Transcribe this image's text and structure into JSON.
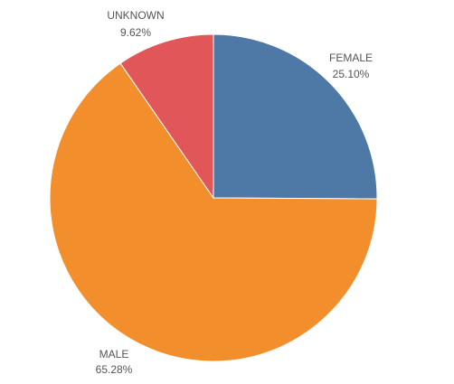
{
  "chart_data": {
    "type": "pie",
    "title": "",
    "slices": [
      {
        "label": "FEMALE",
        "value": 25.1,
        "value_label": "25.10%",
        "color": "#4E79A7"
      },
      {
        "label": "MALE",
        "value": 65.28,
        "value_label": "65.28%",
        "color": "#F28E2B"
      },
      {
        "label": "UNKNOWN",
        "value": 9.62,
        "value_label": "9.62%",
        "color": "#E15759"
      }
    ],
    "start": "12 o'clock",
    "direction": "clockwise",
    "legend": "none"
  }
}
